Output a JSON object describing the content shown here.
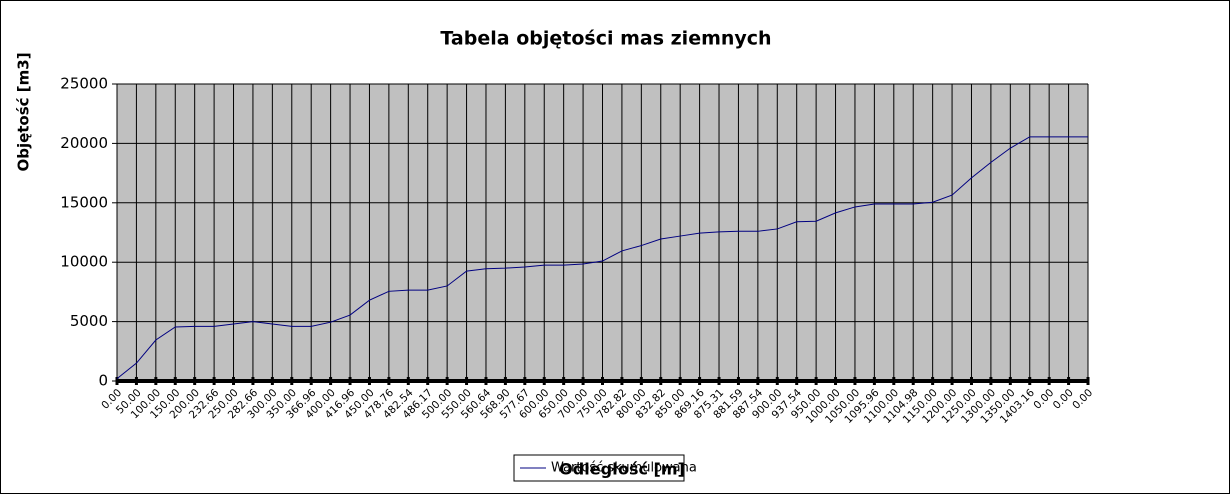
{
  "chart_data": {
    "type": "line",
    "title": "Tabela objętości mas ziemnych",
    "x_label": "Odległość [m]",
    "y_label": "Objętość [m3]",
    "categories": [
      "0.00",
      "50.00",
      "100.00",
      "150.00",
      "200.00",
      "232.66",
      "250.00",
      "282.66",
      "300.00",
      "350.00",
      "366.96",
      "400.00",
      "416.96",
      "450.00",
      "478.76",
      "482.54",
      "486.17",
      "500.00",
      "550.00",
      "560.64",
      "568.90",
      "577.67",
      "600.00",
      "650.00",
      "700.00",
      "750.00",
      "782.82",
      "800.00",
      "832.82",
      "850.00",
      "869.16",
      "875.31",
      "881.59",
      "887.54",
      "900.00",
      "937.54",
      "950.00",
      "1000.00",
      "1050.00",
      "1095.96",
      "1100.00",
      "1104.98",
      "1150.00",
      "1200.00",
      "1250.00",
      "1300.00",
      "1350.00",
      "1403.16",
      "0.00",
      "0.00",
      "0.00"
    ],
    "series": [
      {
        "name": "Wartość skumulowana",
        "color": "#000080",
        "values": [
          200,
          1500,
          3450,
          4550,
          4600,
          4600,
          4800,
          5000,
          4800,
          4600,
          4600,
          4950,
          5550,
          6800,
          7550,
          7650,
          7650,
          8000,
          9250,
          9450,
          9500,
          9600,
          9750,
          9750,
          9850,
          10100,
          10950,
          11400,
          11950,
          12200,
          12450,
          12550,
          12600,
          12600,
          12800,
          13400,
          13450,
          14150,
          14650,
          14900,
          14900,
          14900,
          15050,
          15650,
          17100,
          18400,
          19600,
          20550,
          20550,
          20550,
          20550
        ]
      }
    ],
    "ylim": [
      0,
      25000
    ],
    "yticks": [
      0,
      5000,
      10000,
      15000,
      20000,
      25000
    ],
    "grid": true,
    "legend": "bottom"
  }
}
